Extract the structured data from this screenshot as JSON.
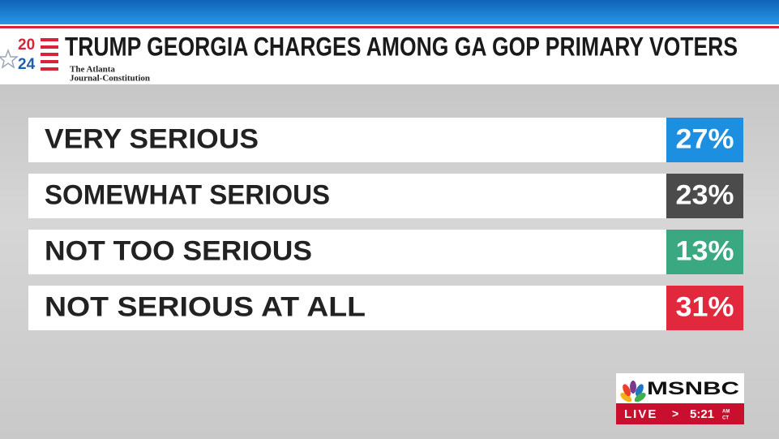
{
  "header": {
    "logo_top": "20",
    "logo_bottom": "24",
    "title": "TRUMP GEORGIA CHARGES AMONG GA GOP PRIMARY VOTERS",
    "source_line1": "The Atlanta",
    "source_line2": "Journal-Constitution"
  },
  "rows": [
    {
      "label": "VERY SERIOUS",
      "value": "27%",
      "color": "#1c8fe0"
    },
    {
      "label": "SOMEWHAT SERIOUS",
      "value": "23%",
      "color": "#4b4b4b"
    },
    {
      "label": "NOT TOO SERIOUS",
      "value": "13%",
      "color": "#3aa981"
    },
    {
      "label": "NOT SERIOUS AT ALL",
      "value": "31%",
      "color": "#e2283d"
    }
  ],
  "bug": {
    "network": "MSNBC",
    "live": "LIVE",
    "arrow": ">",
    "time": "5:21",
    "ampm": "AM",
    "zone": "CT"
  }
}
